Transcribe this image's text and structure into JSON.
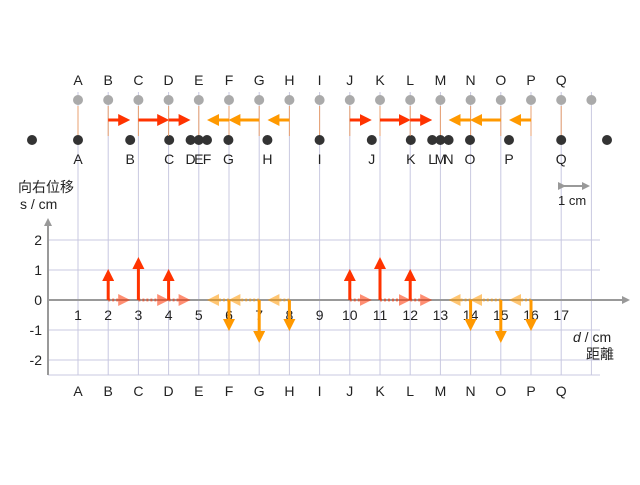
{
  "diagram": {
    "labels": [
      "A",
      "B",
      "C",
      "D",
      "E",
      "F",
      "G",
      "H",
      "I",
      "J",
      "K",
      "L",
      "M",
      "N",
      "O",
      "P",
      "Q"
    ],
    "x_ticks": [
      "1",
      "2",
      "3",
      "4",
      "5",
      "6",
      "7",
      "8",
      "9",
      "10",
      "11",
      "12",
      "13",
      "14",
      "15",
      "16",
      "17"
    ],
    "y_ticks": [
      "2",
      "1",
      "0",
      "-1",
      "-2"
    ],
    "y_axis_title": "向右位移",
    "y_axis_unit": "s / cm",
    "x_axis_unit_symbol": "d",
    "x_axis_unit_rest": " / cm",
    "x_axis_title": "距離",
    "scale_label": "1 cm",
    "displacements": [
      0,
      1,
      1.4,
      1,
      0,
      -1,
      -1.4,
      -1,
      0,
      1,
      1.4,
      1,
      0,
      -1,
      -1.4,
      -1,
      0
    ],
    "bottom_row_labels": [
      "A",
      "B",
      "C",
      "D",
      "E",
      "F",
      "G",
      "H",
      "I",
      "J",
      "K",
      "L",
      "M",
      "N",
      "O",
      "P",
      "Q"
    ],
    "colors": {
      "grid": "#c8c8e0",
      "axis": "#999999",
      "dot_rest": "#aaaaaa",
      "dot_moved": "#333333",
      "positive": "#ff3300",
      "negative": "#ff9900"
    }
  }
}
